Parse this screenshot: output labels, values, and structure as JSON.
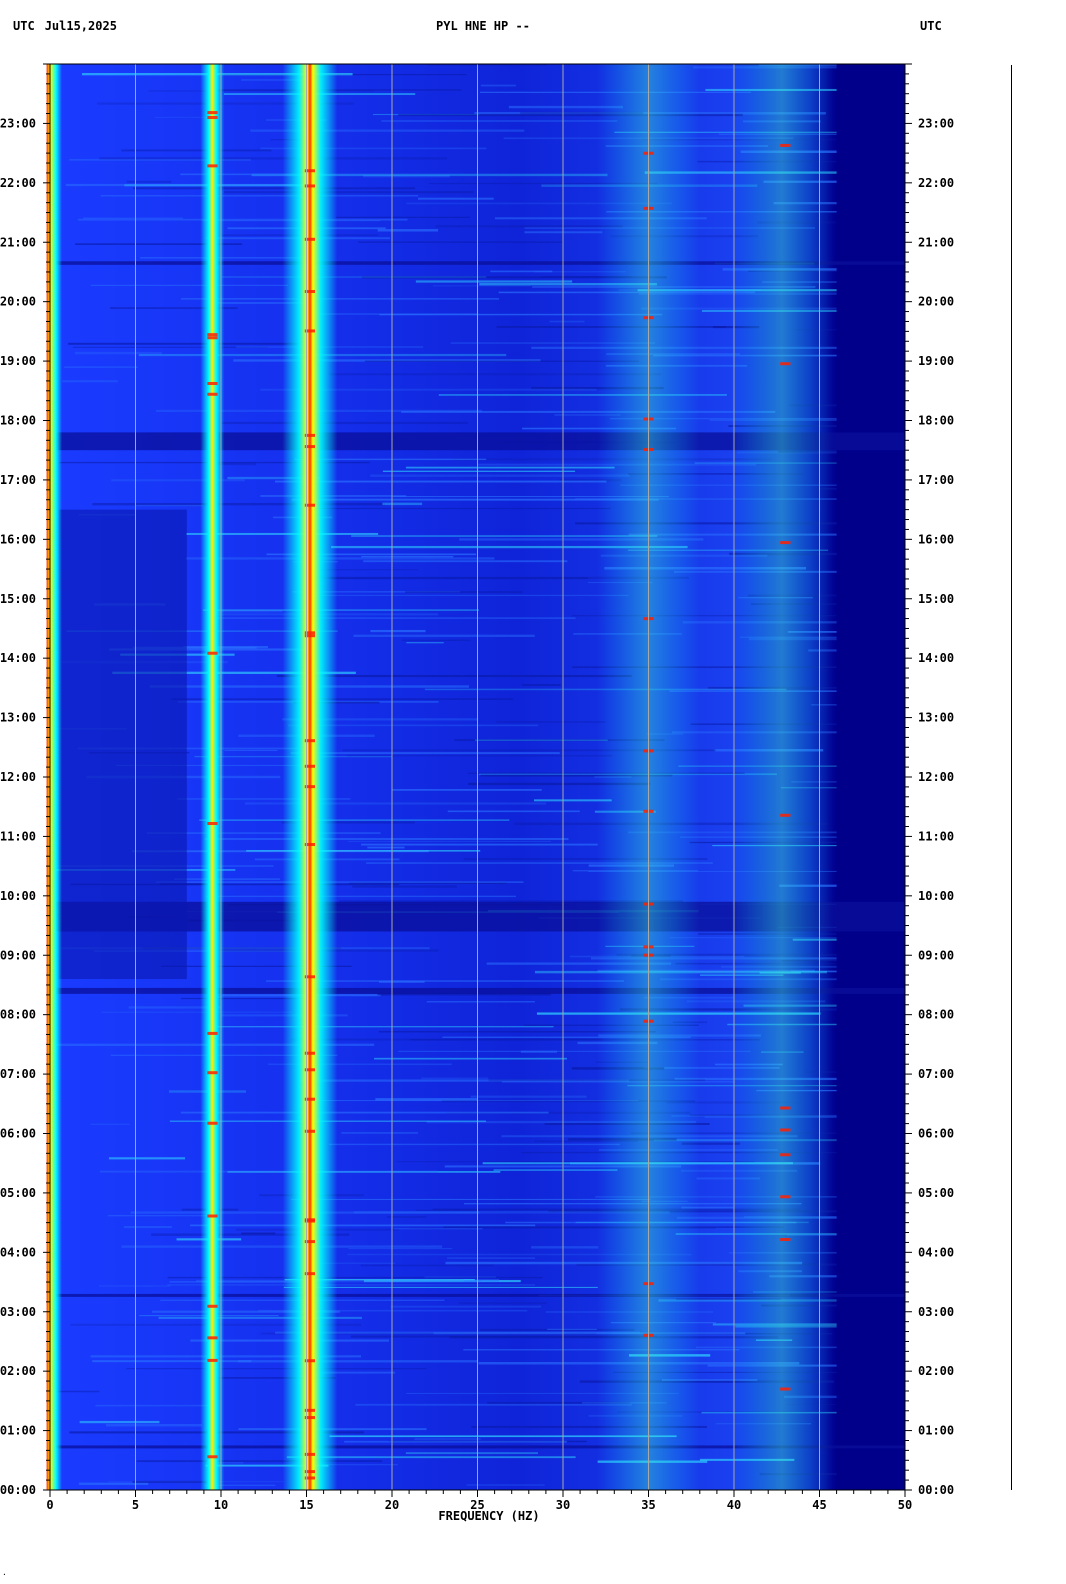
{
  "header": {
    "timezone_left": "UTC",
    "date": "Jul15,2025",
    "title": "PYL HNE HP --",
    "timezone_right": "UTC"
  },
  "chart_data": {
    "type": "heatmap",
    "title": "PYL HNE HP --",
    "xlabel": "FREQUENCY (HZ)",
    "ylabel": "",
    "xlim": [
      0,
      50
    ],
    "ylim": [
      0,
      24
    ],
    "x_ticks": [
      "0",
      "5",
      "10",
      "15",
      "20",
      "25",
      "30",
      "35",
      "40",
      "45",
      "50"
    ],
    "y_tick_labels": [
      "00:00",
      "01:00",
      "02:00",
      "03:00",
      "04:00",
      "05:00",
      "06:00",
      "07:00",
      "08:00",
      "09:00",
      "10:00",
      "11:00",
      "12:00",
      "13:00",
      "14:00",
      "15:00",
      "16:00",
      "17:00",
      "18:00",
      "19:00",
      "20:00",
      "21:00",
      "22:00",
      "23:00"
    ],
    "grid": true,
    "colormap": [
      "#00008b",
      "#0000ff",
      "#00ffff",
      "#ffff00",
      "#ff0000"
    ],
    "dominant_bands_hz": [
      0.3,
      9.5,
      15.2,
      35.0,
      43.0
    ],
    "quiet_band_hz": [
      45.5,
      50
    ]
  }
}
